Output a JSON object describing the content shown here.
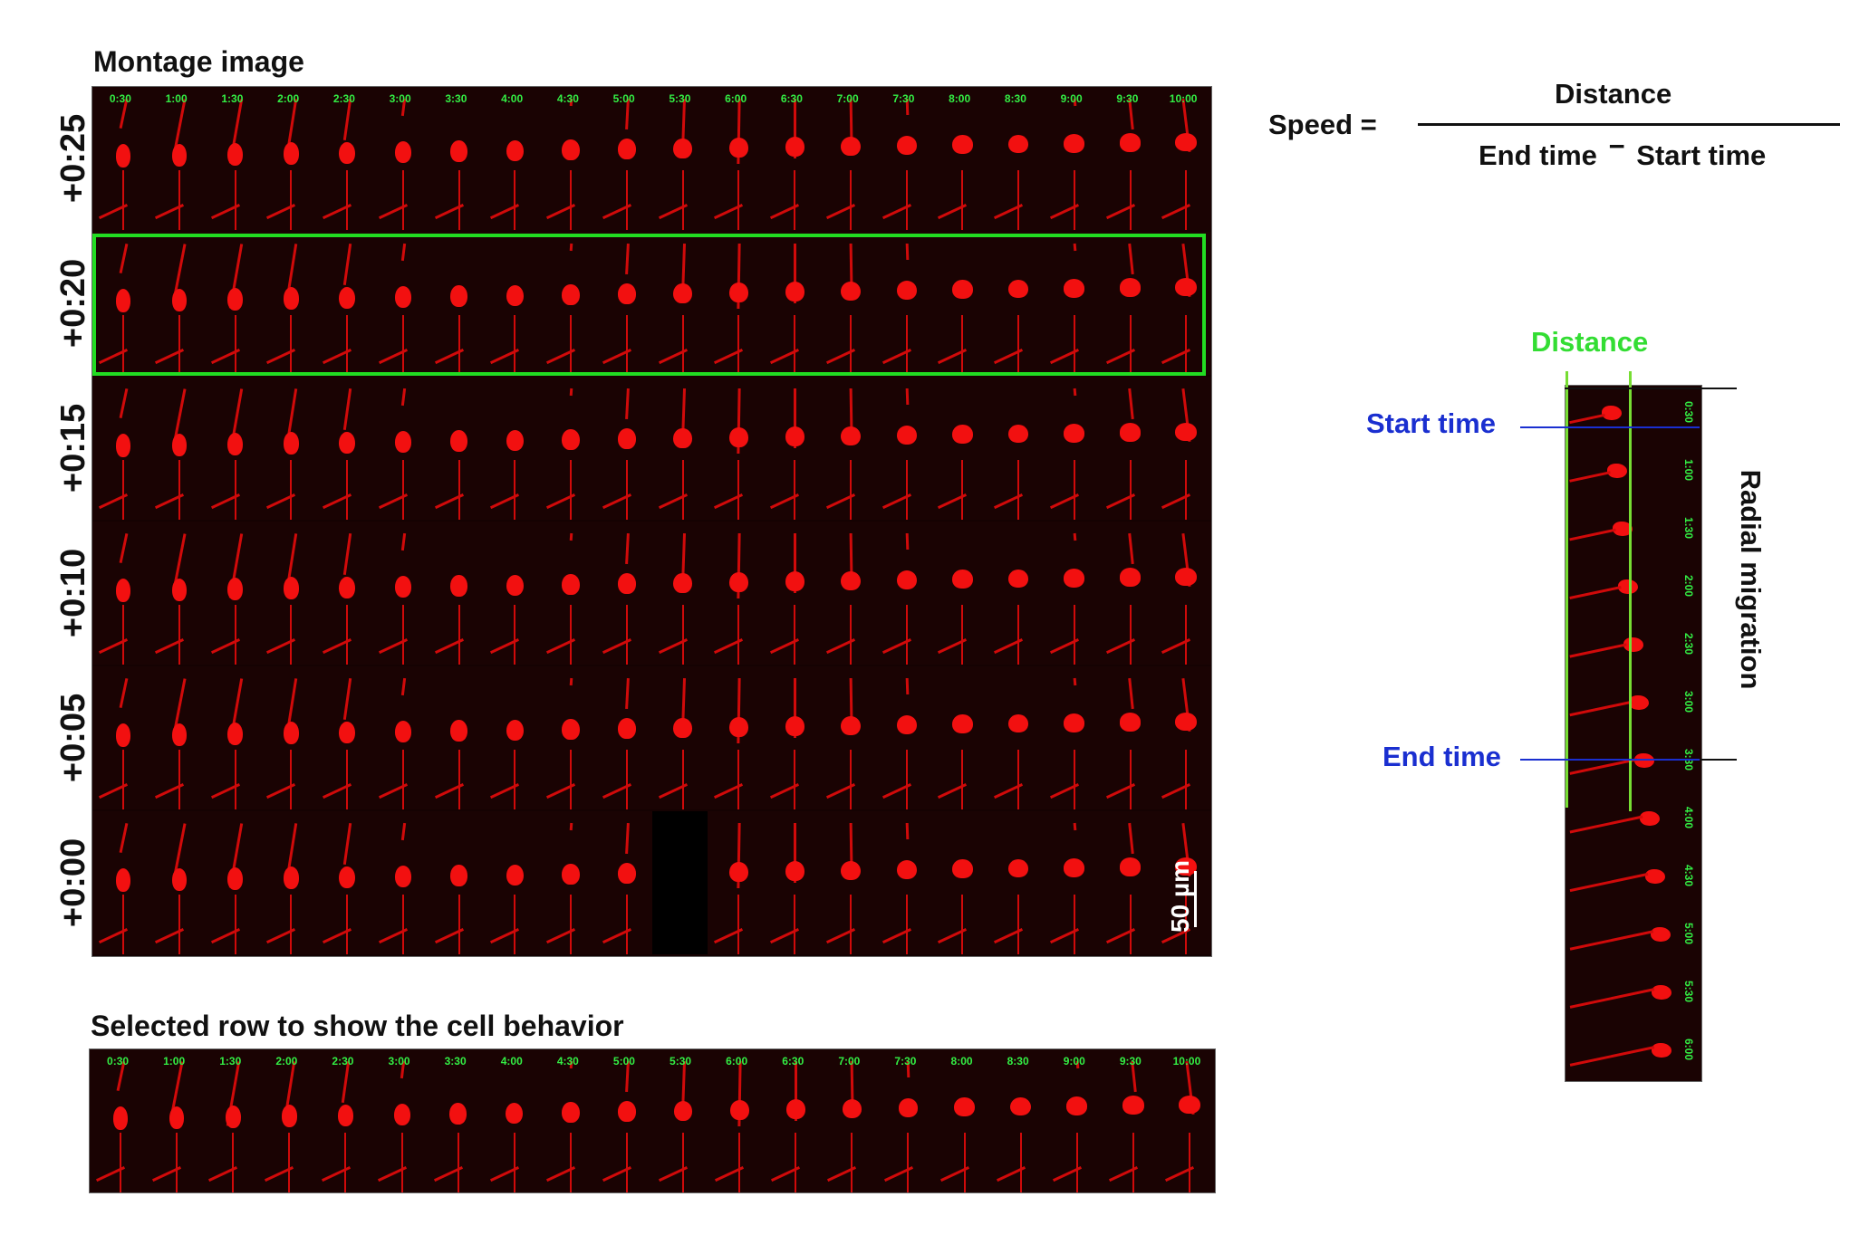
{
  "montage": {
    "title": "Montage image",
    "row_offsets": [
      "+0:25",
      "+0:20",
      "+0:15",
      "+0:10",
      "+0:05",
      "+0:00"
    ],
    "highlight_row_offset": "+0:20",
    "highlight_color": "#22dd22",
    "time_labels": [
      "0:30",
      "1:00",
      "1:30",
      "2:00",
      "2:30",
      "3:00",
      "3:30",
      "4:00",
      "4:30",
      "5:00",
      "5:30",
      "6:00",
      "6:30",
      "7:00",
      "7:30",
      "8:00",
      "8:30",
      "9:00",
      "9:30",
      "10:00"
    ],
    "scale_bar_label": "50 µm"
  },
  "selected_row": {
    "title": "Selected row to show the cell behavior",
    "time_labels": [
      "0:30",
      "1:00",
      "1:30",
      "2:00",
      "2:30",
      "3:00",
      "3:30",
      "4:00",
      "4:30",
      "5:00",
      "5:30",
      "6:00",
      "6:30",
      "7:00",
      "7:30",
      "8:00",
      "8:30",
      "9:00",
      "9:30",
      "10:00"
    ]
  },
  "formula": {
    "lhs": "Speed =",
    "numerator": "Distance",
    "denominator_left": "End time",
    "minus": "−",
    "denominator_right": "Start time"
  },
  "migration_panel": {
    "distance_label": "Distance",
    "start_label": "Start time",
    "end_label": "End time",
    "side_label": "Radial migration",
    "time_labels": [
      "0:30",
      "1:00",
      "1:30",
      "2:00",
      "2:30",
      "3:00",
      "3:30",
      "4:00",
      "4:30",
      "5:00",
      "5:30",
      "6:00"
    ],
    "distance_color": "#33dd33",
    "time_color": "#1a2fd0"
  }
}
